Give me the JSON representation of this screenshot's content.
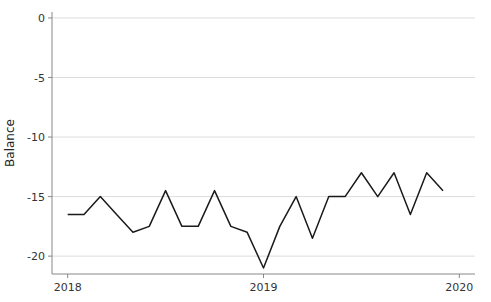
{
  "chart_data": {
    "type": "line",
    "ylabel": "Balance",
    "x": [
      2018,
      2018.08333333,
      2018.16666666,
      2018.24999999,
      2018.33333332,
      2018.41666665,
      2018.49999998,
      2018.58333331,
      2018.66666664,
      2018.74999997,
      2018.8333333,
      2018.91666663,
      2018.99999996,
      2019.08333329,
      2019.16666662,
      2019.24999995,
      2019.33333328,
      2019.41666661,
      2019.49999994,
      2019.58333327,
      2019.6666666,
      2019.74999993,
      2019.83333326,
      2019.91666659
    ],
    "values": [
      -16.5,
      -16.5,
      -15.0,
      -16.5,
      -18.0,
      -17.5,
      -14.5,
      -17.5,
      -17.5,
      -14.5,
      -17.5,
      -18.0,
      -21.0,
      -17.5,
      -15.0,
      -18.5,
      -15.0,
      -15.0,
      -13.0,
      -15.0,
      -13.0,
      -16.5,
      -13.0,
      -14.5
    ],
    "color": "#1a1a1a",
    "xlim": [
      2017.92,
      2020.08
    ],
    "ylim": [
      -21.5,
      0.5
    ],
    "xticks": [
      2018,
      2019,
      2020
    ],
    "yticks": [
      0,
      -5,
      -10,
      -15,
      -20
    ],
    "grid": true
  }
}
